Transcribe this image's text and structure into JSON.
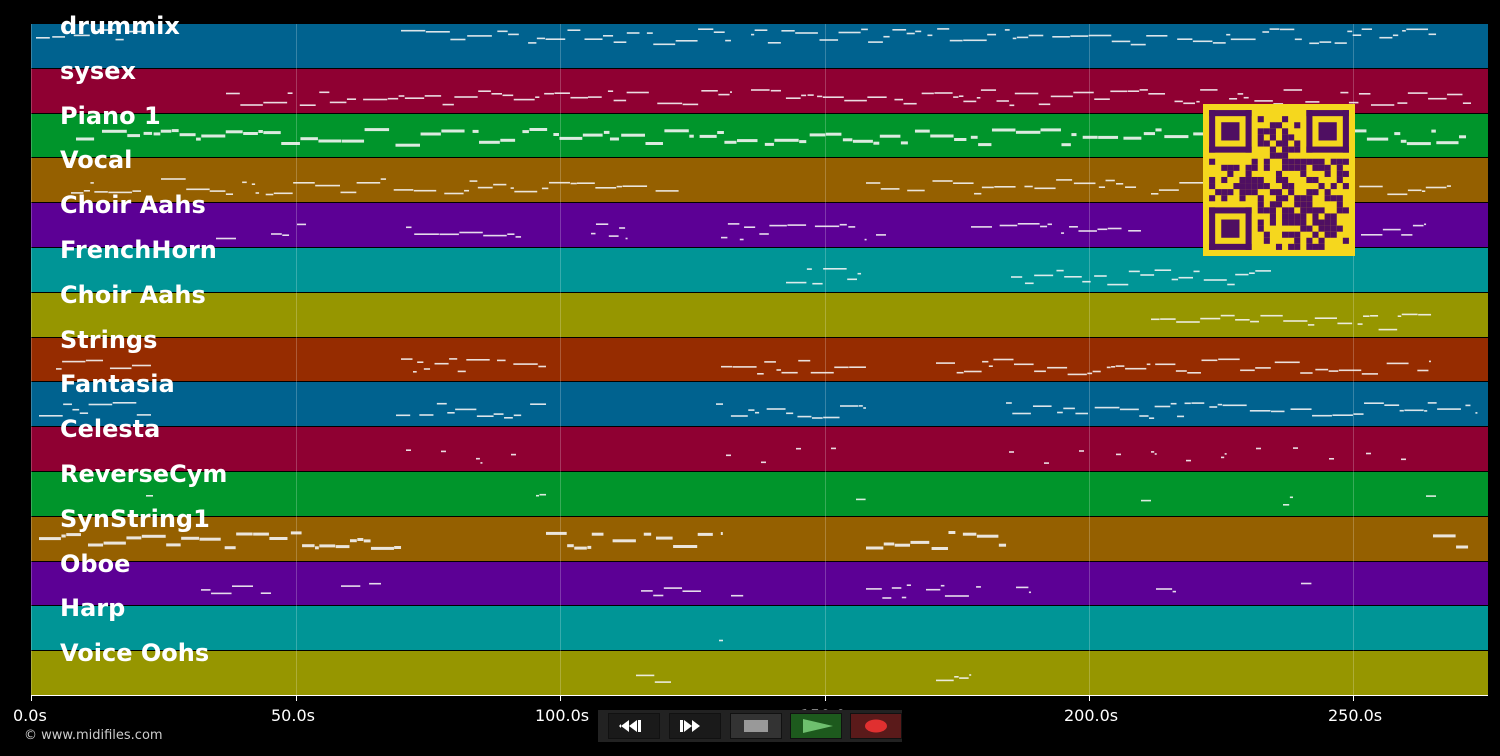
{
  "tracks": [
    {
      "label": "drummix",
      "color": "#00628f"
    },
    {
      "label": "sysex",
      "color": "#8f0032"
    },
    {
      "label": "Piano 1",
      "color": "#00952b"
    },
    {
      "label": "Vocal",
      "color": "#956000"
    },
    {
      "label": "Choir Aahs",
      "color": "#5c0095"
    },
    {
      "label": "FrenchHorn",
      "color": "#009596"
    },
    {
      "label": "Choir Aahs",
      "color": "#969600"
    },
    {
      "label": "Strings",
      "color": "#962c00"
    },
    {
      "label": "Fantasia",
      "color": "#00628f"
    },
    {
      "label": "Celesta",
      "color": "#8f0032"
    },
    {
      "label": "ReverseCym",
      "color": "#00952b"
    },
    {
      "label": "SynString1",
      "color": "#956000"
    },
    {
      "label": "Oboe",
      "color": "#5c0095"
    },
    {
      "label": "Harp",
      "color": "#009596"
    },
    {
      "label": "Voice Oohs",
      "color": "#969600"
    }
  ],
  "timeline": {
    "ticks": [
      "0.0s",
      "50.0s",
      "100.0s",
      "150.0s",
      "200.0s",
      "250.0s"
    ]
  },
  "transport": {
    "buttons": [
      {
        "name": "rewind-button",
        "icon": "rewind-icon"
      },
      {
        "name": "fast-forward-button",
        "icon": "fast-forward-icon"
      },
      {
        "name": "stop-button",
        "icon": "stop-icon"
      },
      {
        "name": "play-button",
        "icon": "play-icon"
      },
      {
        "name": "record-button",
        "icon": "record-icon"
      }
    ]
  },
  "footer": {
    "copyright": "© www.midifiles.com"
  },
  "qr": {
    "icon": "qr-code-icon",
    "color": "#f5d71e",
    "dark": "#4f0f62"
  }
}
